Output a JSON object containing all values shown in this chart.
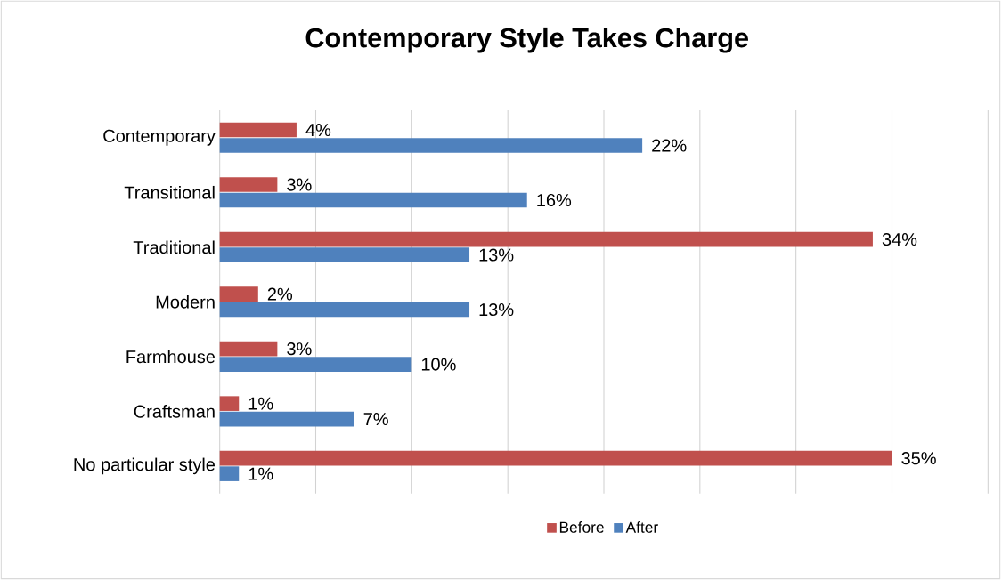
{
  "chart_data": {
    "type": "bar",
    "orientation": "horizontal",
    "title": "Contemporary Style Takes Charge",
    "categories": [
      "Contemporary",
      "Transitional",
      "Traditional",
      "Modern",
      "Farmhouse",
      "Craftsman",
      "No particular style"
    ],
    "series": [
      {
        "name": "Before",
        "color": "#c0504d",
        "values": [
          4,
          3,
          34,
          2,
          3,
          1,
          35
        ],
        "value_labels": [
          "4%",
          "3%",
          "34%",
          "2%",
          "3%",
          "1%",
          "35%"
        ]
      },
      {
        "name": "After",
        "color": "#4f81bd",
        "values": [
          22,
          16,
          13,
          13,
          10,
          7,
          1
        ],
        "value_labels": [
          "22%",
          "16%",
          "13%",
          "13%",
          "10%",
          "7%",
          "1%"
        ]
      }
    ],
    "xlim": [
      0,
      40
    ],
    "xticks": [
      {
        "value": 0,
        "label": null
      },
      {
        "value": 5,
        "label": null
      },
      {
        "value": 10,
        "label": null
      },
      {
        "value": 15,
        "label": null
      },
      {
        "value": 20,
        "label": null
      },
      {
        "value": 25,
        "label": null
      },
      {
        "value": 30,
        "label": null
      },
      {
        "value": 35,
        "label": null
      },
      {
        "value": 40,
        "label": null
      }
    ],
    "grid": "x",
    "legend": "bottom",
    "tick_labels": "y"
  }
}
